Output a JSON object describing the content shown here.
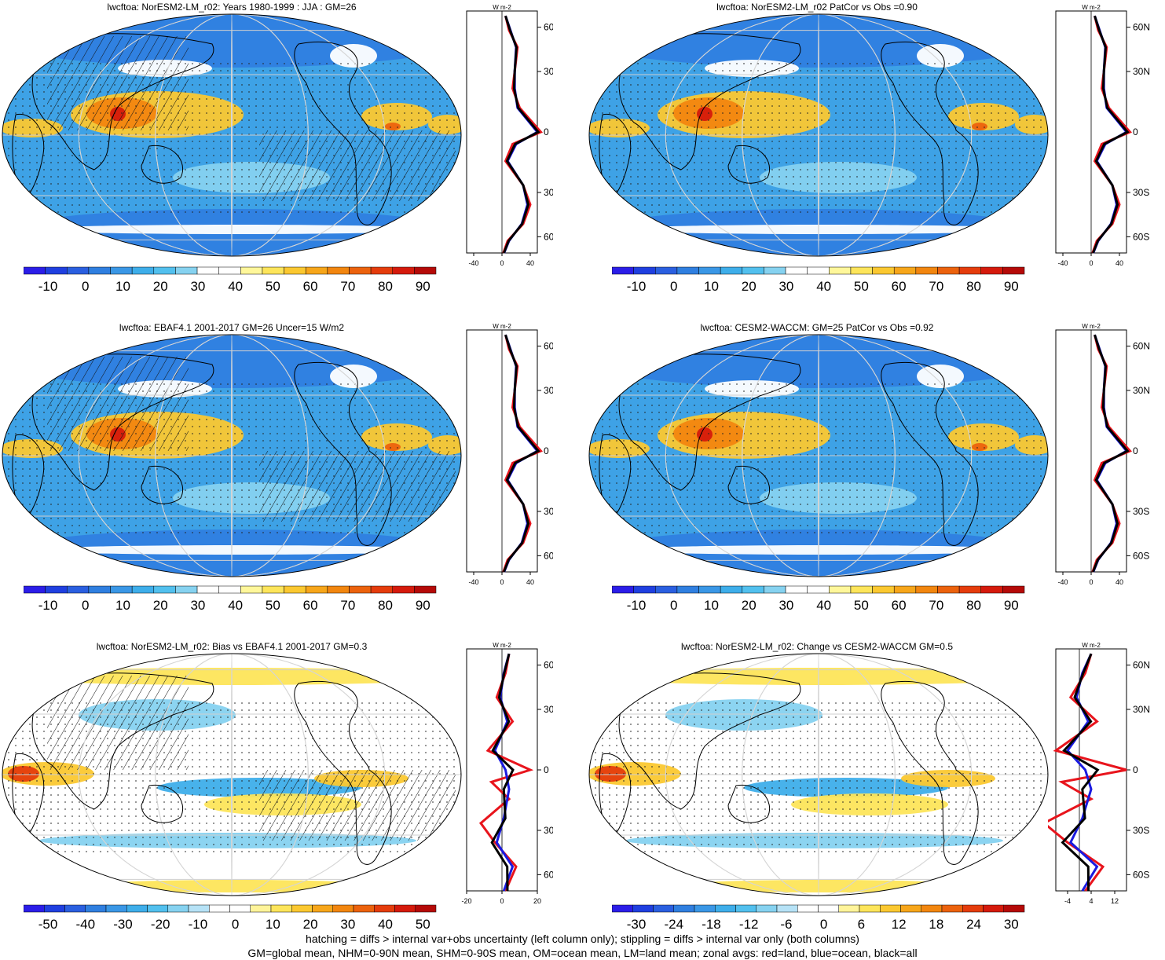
{
  "panels": [
    {
      "title": "lwcftoa: NorESM2-LM_r02: Years 1980-1999 : JJA : GM=26",
      "colorbar_ticks": [
        "-10",
        "0",
        "10",
        "20",
        "30",
        "40",
        "50",
        "60",
        "70",
        "80",
        "90"
      ],
      "zonal_xticks": [
        "-40",
        "0",
        "40"
      ],
      "zonal_xrange": [
        -50,
        50
      ],
      "pattern": "abs",
      "hatch": true
    },
    {
      "title": "lwcftoa: NorESM2-LM_r02 PatCor vs Obs =0.90",
      "colorbar_ticks": [
        "-10",
        "0",
        "10",
        "20",
        "30",
        "40",
        "50",
        "60",
        "70",
        "80",
        "90"
      ],
      "zonal_xticks": [
        "-40",
        "0",
        "40"
      ],
      "zonal_xrange": [
        -50,
        50
      ],
      "pattern": "abs",
      "hatch": false
    },
    {
      "title": "lwcftoa: EBAF4.1 2001-2017 GM=26 Uncer=15 W/m2",
      "colorbar_ticks": [
        "-10",
        "0",
        "10",
        "20",
        "30",
        "40",
        "50",
        "60",
        "70",
        "80",
        "90"
      ],
      "zonal_xticks": [
        "-40",
        "0",
        "40"
      ],
      "zonal_xrange": [
        -50,
        50
      ],
      "pattern": "abs",
      "hatch": true
    },
    {
      "title": "lwcftoa: CESM2-WACCM: GM=25 PatCor vs Obs =0.92",
      "colorbar_ticks": [
        "-10",
        "0",
        "10",
        "20",
        "30",
        "40",
        "50",
        "60",
        "70",
        "80",
        "90"
      ],
      "zonal_xticks": [
        "-40",
        "0",
        "40"
      ],
      "zonal_xrange": [
        -50,
        50
      ],
      "pattern": "abs",
      "hatch": false
    },
    {
      "title": "lwcftoa: NorESM2-LM_r02: Bias vs EBAF4.1 2001-2017 GM=0.3",
      "colorbar_ticks": [
        "-50",
        "-40",
        "-30",
        "-20",
        "-10",
        "0",
        "10",
        "20",
        "30",
        "40",
        "50"
      ],
      "zonal_xticks": [
        "-20",
        "0",
        "20"
      ],
      "zonal_xrange": [
        -20,
        20
      ],
      "pattern": "diff",
      "hatch": true
    },
    {
      "title": "lwcftoa: NorESM2-LM_r02: Change vs CESM2-WACCM GM=0.5",
      "colorbar_ticks": [
        "-30",
        "-24",
        "-18",
        "-12",
        "-6",
        "0",
        "6",
        "12",
        "18",
        "24",
        "30"
      ],
      "zonal_xticks": [
        "-4",
        "4",
        "12"
      ],
      "zonal_xrange": [
        -8,
        16
      ],
      "pattern": "diff",
      "hatch": false
    }
  ],
  "zonal_units": "W m-2",
  "lat_ticks": [
    "60N",
    "30N",
    "0",
    "30S",
    "60S"
  ],
  "colors": {
    "land": "#e8141c",
    "ocean": "#1a1ae0",
    "all": "#000000",
    "abs_scale": [
      "#2b1de8",
      "#1f3fe0",
      "#2a5fe0",
      "#2f7fe0",
      "#3a97e6",
      "#3eaeea",
      "#52c0ee",
      "#86d2f0",
      "#ffffff",
      "#ffffff",
      "#fff79a",
      "#fde55a",
      "#fbc830",
      "#f7a61a",
      "#f2860f",
      "#ec620d",
      "#e53c0c",
      "#d51a0c",
      "#b50a08"
    ],
    "diff_scale": [
      "#2b1de8",
      "#1f3fe0",
      "#2a5fe0",
      "#2f7fe0",
      "#3a97e6",
      "#3eaeea",
      "#52c0ee",
      "#86d2f0",
      "#b6e2f6",
      "#ffffff",
      "#ffffff",
      "#fff49a",
      "#fde55a",
      "#fbc830",
      "#f7a61a",
      "#f2860f",
      "#ec620d",
      "#e53c0c",
      "#d51a0c",
      "#b50a08"
    ]
  },
  "footer": {
    "line1": "hatching = diffs > internal var+obs uncertainty (left column only); stippling = diffs > internal var only (both columns)",
    "line2": "GM=global mean, NHM=0-90N mean, SHM=0-90S mean, OM=ocean mean, LM=land mean; zonal avgs: red=land, blue=ocean, black=all"
  }
}
